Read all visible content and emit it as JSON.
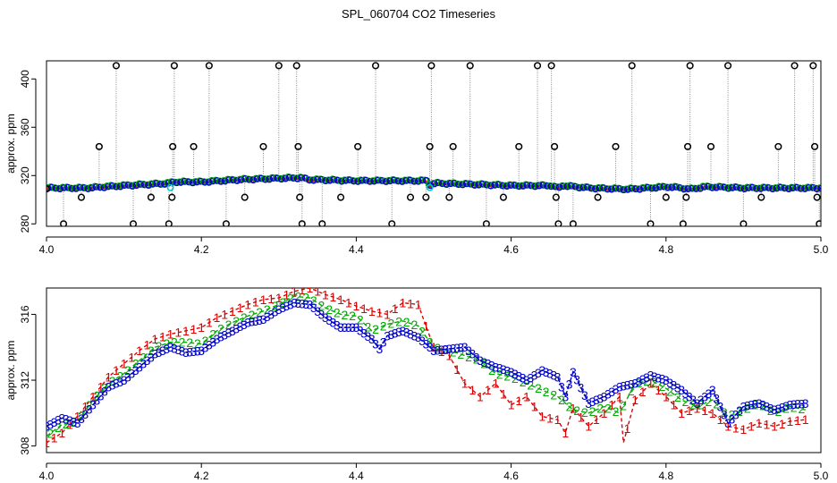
{
  "title": "SPL_060704  CO2 Timeseries",
  "colors": {
    "sensor1": "#dd0000",
    "sensor2": "#00aa00",
    "sensor3": "#0000cc",
    "flag": "#000000",
    "cyan": "#00cccc",
    "dotted": "#888888",
    "frame": "#000000"
  },
  "chart_data": [
    {
      "type": "scatter",
      "ylabel": "approx. ppm",
      "xlabel": "",
      "xlim": [
        4.0,
        5.0
      ],
      "ylim": [
        278,
        415
      ],
      "xticks": [
        4.0,
        4.2,
        4.4,
        4.6,
        4.8,
        5.0
      ],
      "xtick_labels": [
        "4.0",
        "4.2",
        "4.4",
        "4.6",
        "4.8",
        "5.0"
      ],
      "yticks": [
        280,
        320,
        360,
        400
      ],
      "ytick_labels": [
        "280",
        "320",
        "360",
        "400"
      ],
      "baseline": [
        [
          4.0,
          310
        ],
        [
          4.05,
          310
        ],
        [
          4.1,
          312
        ],
        [
          4.16,
          314
        ],
        [
          4.162,
          315
        ],
        [
          4.2,
          315
        ],
        [
          4.25,
          317
        ],
        [
          4.3,
          318
        ],
        [
          4.33,
          318.5
        ],
        [
          4.335,
          317
        ],
        [
          4.4,
          316
        ],
        [
          4.45,
          316
        ],
        [
          4.49,
          316
        ],
        [
          4.495,
          312
        ],
        [
          4.5,
          314
        ],
        [
          4.55,
          313
        ],
        [
          4.6,
          312
        ],
        [
          4.65,
          312
        ],
        [
          4.66,
          310
        ],
        [
          4.665,
          312
        ],
        [
          4.7,
          310
        ],
        [
          4.75,
          309
        ],
        [
          4.8,
          311
        ],
        [
          4.82,
          310
        ],
        [
          4.83,
          309
        ],
        [
          4.84,
          310
        ],
        [
          4.85,
          311
        ],
        [
          4.9,
          310
        ],
        [
          4.95,
          310
        ],
        [
          5.0,
          310
        ]
      ],
      "flag_points": [
        [
          4.0,
          309
        ],
        [
          4.022,
          280
        ],
        [
          4.045,
          302
        ],
        [
          4.068,
          344
        ],
        [
          4.09,
          411
        ],
        [
          4.112,
          280
        ],
        [
          4.135,
          302
        ],
        [
          4.158,
          280
        ],
        [
          4.162,
          302
        ],
        [
          4.163,
          344
        ],
        [
          4.165,
          411
        ],
        [
          4.19,
          344
        ],
        [
          4.21,
          411
        ],
        [
          4.232,
          280
        ],
        [
          4.256,
          302
        ],
        [
          4.28,
          344
        ],
        [
          4.3,
          411
        ],
        [
          4.323,
          411
        ],
        [
          4.325,
          344
        ],
        [
          4.327,
          302
        ],
        [
          4.33,
          280
        ],
        [
          4.356,
          280
        ],
        [
          4.38,
          302
        ],
        [
          4.402,
          344
        ],
        [
          4.425,
          411
        ],
        [
          4.446,
          280
        ],
        [
          4.47,
          302
        ],
        [
          4.49,
          302
        ],
        [
          4.495,
          344
        ],
        [
          4.497,
          411
        ],
        [
          4.52,
          302
        ],
        [
          4.525,
          344
        ],
        [
          4.547,
          411
        ],
        [
          4.568,
          280
        ],
        [
          4.59,
          302
        ],
        [
          4.61,
          344
        ],
        [
          4.634,
          411
        ],
        [
          4.652,
          411
        ],
        [
          4.656,
          344
        ],
        [
          4.658,
          302
        ],
        [
          4.661,
          280
        ],
        [
          4.68,
          280
        ],
        [
          4.712,
          302
        ],
        [
          4.735,
          344
        ],
        [
          4.756,
          411
        ],
        [
          4.78,
          280
        ],
        [
          4.8,
          302
        ],
        [
          4.822,
          280
        ],
        [
          4.826,
          302
        ],
        [
          4.828,
          344
        ],
        [
          4.831,
          411
        ],
        [
          4.858,
          344
        ],
        [
          4.88,
          411
        ],
        [
          4.9,
          280
        ],
        [
          4.923,
          302
        ],
        [
          4.945,
          344
        ],
        [
          4.966,
          411
        ],
        [
          4.99,
          411
        ],
        [
          4.992,
          344
        ],
        [
          4.995,
          302
        ],
        [
          4.998,
          280
        ]
      ],
      "cyan_points": [
        [
          4.16,
          310
        ],
        [
          4.495,
          310
        ]
      ]
    },
    {
      "type": "line",
      "ylabel": "approx. ppm",
      "xlabel": "",
      "xlim": [
        4.0,
        5.0
      ],
      "ylim": [
        307.6,
        317.6
      ],
      "xticks": [
        4.0,
        4.2,
        4.4,
        4.6,
        4.8,
        5.0
      ],
      "xtick_labels": [
        "4.0",
        "4.2",
        "4.4",
        "4.6",
        "4.8",
        "5.0"
      ],
      "yticks": [
        308,
        312,
        316
      ],
      "ytick_labels": [
        "308",
        "312",
        "316"
      ],
      "series": [
        {
          "name": "1",
          "symbol": "1",
          "points": [
            [
              4.0,
              308.2
            ],
            [
              4.02,
              308.8
            ],
            [
              4.04,
              309.8
            ],
            [
              4.06,
              311.0
            ],
            [
              4.08,
              312.2
            ],
            [
              4.1,
              313.0
            ],
            [
              4.12,
              313.8
            ],
            [
              4.14,
              314.5
            ],
            [
              4.16,
              314.8
            ],
            [
              4.18,
              315.0
            ],
            [
              4.2,
              315.2
            ],
            [
              4.22,
              315.8
            ],
            [
              4.24,
              316.2
            ],
            [
              4.26,
              316.6
            ],
            [
              4.28,
              316.9
            ],
            [
              4.3,
              317.0
            ],
            [
              4.32,
              317.4
            ],
            [
              4.34,
              317.6
            ],
            [
              4.36,
              317.2
            ],
            [
              4.38,
              316.9
            ],
            [
              4.4,
              316.5
            ],
            [
              4.42,
              316.2
            ],
            [
              4.44,
              316.0
            ],
            [
              4.46,
              316.7
            ],
            [
              4.48,
              316.6
            ],
            [
              4.5,
              314.0
            ],
            [
              4.52,
              313.5
            ],
            [
              4.54,
              311.8
            ],
            [
              4.56,
              311.0
            ],
            [
              4.58,
              311.8
            ],
            [
              4.6,
              310.5
            ],
            [
              4.62,
              311.0
            ],
            [
              4.64,
              309.8
            ],
            [
              4.66,
              309.6
            ],
            [
              4.67,
              308.8
            ],
            [
              4.68,
              310.3
            ],
            [
              4.7,
              309.2
            ],
            [
              4.72,
              310.0
            ],
            [
              4.74,
              311.0
            ],
            [
              4.745,
              308.2
            ],
            [
              4.76,
              310.8
            ],
            [
              4.78,
              311.8
            ],
            [
              4.8,
              311.0
            ],
            [
              4.82,
              310.0
            ],
            [
              4.84,
              310.3
            ],
            [
              4.86,
              310.0
            ],
            [
              4.88,
              309.2
            ],
            [
              4.9,
              309.0
            ],
            [
              4.92,
              309.4
            ],
            [
              4.94,
              309.2
            ],
            [
              4.96,
              309.5
            ],
            [
              4.98,
              309.6
            ]
          ]
        },
        {
          "name": "2",
          "symbol": "2",
          "points": [
            [
              4.0,
              308.6
            ],
            [
              4.02,
              309.3
            ],
            [
              4.04,
              309.5
            ],
            [
              4.06,
              310.8
            ],
            [
              4.08,
              311.8
            ],
            [
              4.1,
              312.4
            ],
            [
              4.12,
              313.2
            ],
            [
              4.14,
              314.0
            ],
            [
              4.16,
              314.3
            ],
            [
              4.18,
              314.3
            ],
            [
              4.2,
              314.2
            ],
            [
              4.22,
              315.0
            ],
            [
              4.24,
              315.5
            ],
            [
              4.26,
              315.9
            ],
            [
              4.28,
              316.2
            ],
            [
              4.3,
              316.6
            ],
            [
              4.32,
              317.1
            ],
            [
              4.34,
              317.0
            ],
            [
              4.36,
              316.4
            ],
            [
              4.38,
              316.0
            ],
            [
              4.4,
              315.9
            ],
            [
              4.42,
              315.0
            ],
            [
              4.44,
              315.4
            ],
            [
              4.46,
              315.6
            ],
            [
              4.48,
              315.3
            ],
            [
              4.5,
              314.0
            ],
            [
              4.52,
              313.8
            ],
            [
              4.54,
              313.5
            ],
            [
              4.56,
              313.2
            ],
            [
              4.58,
              312.4
            ],
            [
              4.6,
              312.2
            ],
            [
              4.62,
              311.8
            ],
            [
              4.64,
              311.4
            ],
            [
              4.66,
              311.0
            ],
            [
              4.68,
              310.2
            ],
            [
              4.7,
              310.0
            ],
            [
              4.72,
              310.4
            ],
            [
              4.74,
              310.0
            ],
            [
              4.76,
              311.8
            ],
            [
              4.78,
              312.0
            ],
            [
              4.8,
              311.5
            ],
            [
              4.82,
              310.8
            ],
            [
              4.84,
              310.4
            ],
            [
              4.86,
              310.8
            ],
            [
              4.88,
              309.8
            ],
            [
              4.9,
              310.2
            ],
            [
              4.92,
              310.6
            ],
            [
              4.94,
              310.0
            ],
            [
              4.96,
              310.4
            ],
            [
              4.98,
              310.2
            ]
          ]
        },
        {
          "name": "3",
          "symbol": "3",
          "points": [
            [
              4.0,
              309.2
            ],
            [
              4.02,
              309.7
            ],
            [
              4.04,
              309.4
            ],
            [
              4.06,
              310.5
            ],
            [
              4.08,
              311.6
            ],
            [
              4.1,
              312.0
            ],
            [
              4.12,
              312.8
            ],
            [
              4.14,
              313.6
            ],
            [
              4.16,
              314.0
            ],
            [
              4.18,
              313.7
            ],
            [
              4.2,
              313.8
            ],
            [
              4.22,
              314.5
            ],
            [
              4.24,
              315.0
            ],
            [
              4.26,
              315.5
            ],
            [
              4.28,
              315.7
            ],
            [
              4.3,
              316.3
            ],
            [
              4.32,
              316.7
            ],
            [
              4.34,
              316.6
            ],
            [
              4.36,
              315.8
            ],
            [
              4.38,
              315.2
            ],
            [
              4.4,
              315.2
            ],
            [
              4.42,
              314.5
            ],
            [
              4.43,
              313.9
            ],
            [
              4.44,
              314.7
            ],
            [
              4.46,
              315.0
            ],
            [
              4.48,
              314.6
            ],
            [
              4.5,
              313.8
            ],
            [
              4.52,
              313.9
            ],
            [
              4.54,
              314.0
            ],
            [
              4.56,
              313.2
            ],
            [
              4.58,
              312.8
            ],
            [
              4.6,
              312.5
            ],
            [
              4.62,
              312.0
            ],
            [
              4.64,
              312.6
            ],
            [
              4.66,
              312.2
            ],
            [
              4.67,
              311.0
            ],
            [
              4.68,
              312.5
            ],
            [
              4.7,
              310.6
            ],
            [
              4.72,
              311.0
            ],
            [
              4.74,
              311.6
            ],
            [
              4.76,
              311.8
            ],
            [
              4.78,
              312.3
            ],
            [
              4.8,
              312.0
            ],
            [
              4.82,
              311.4
            ],
            [
              4.84,
              310.6
            ],
            [
              4.86,
              311.4
            ],
            [
              4.88,
              309.4
            ],
            [
              4.9,
              310.4
            ],
            [
              4.92,
              310.6
            ],
            [
              4.94,
              310.2
            ],
            [
              4.96,
              310.5
            ],
            [
              4.98,
              310.6
            ]
          ]
        }
      ]
    }
  ]
}
